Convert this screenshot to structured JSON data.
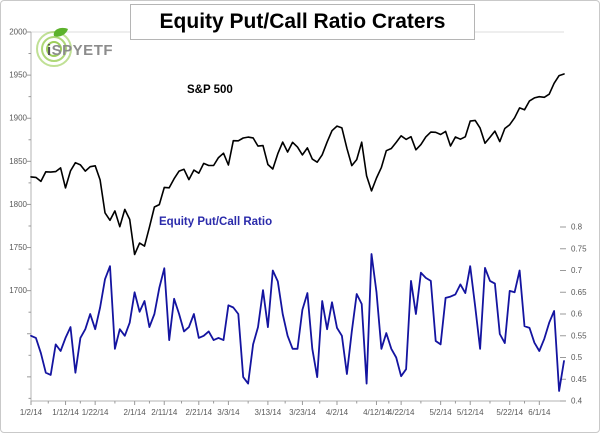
{
  "header": {
    "title": "Equity Put/Call Ratio Craters"
  },
  "logo": {
    "prefix": "i",
    "rest": "SPYETF"
  },
  "colors": {
    "frame_border": "#c9c9c9",
    "title_border": "#b5b5b5",
    "axis_line": "#b3b3b3",
    "plot_top_border": "#dcdcdc",
    "tick": "#9a9a9a",
    "axis_text": "#595959",
    "sp500_line": "#000000",
    "putcall_line": "#1414a0",
    "putcall_label": "#2b2bab",
    "logo_green": "#8cc63e",
    "logo_leaf": "#5cb22c",
    "logo_text_gray": "#8c8c8c",
    "logo_text_dark": "#555555"
  },
  "chart_data": {
    "type": "line",
    "title": "Equity Put/Call Ratio Craters",
    "x_axis": {
      "tick_labels": [
        "1/2/14",
        "1/12/14",
        "1/22/14",
        "2/1/14",
        "2/11/14",
        "2/21/14",
        "3/3/14",
        "3/13/14",
        "3/23/14",
        "4/2/14",
        "4/12/14",
        "4/22/14",
        "5/2/14",
        "5/12/14",
        "5/22/14",
        "6/1/14"
      ],
      "tick_point_indices": [
        0,
        7,
        13,
        21,
        27,
        34,
        40,
        48,
        55,
        62,
        70,
        75,
        83,
        89,
        97,
        103
      ],
      "num_points": 109,
      "note": "daily trading days, 1/2/14 through early June 2014"
    },
    "y_left": {
      "axis_for": "S&P 500",
      "min": 1572,
      "max": 2000,
      "tick_values": [
        2000,
        1950,
        1900,
        1850,
        1800,
        1750,
        1700
      ],
      "minor_step": 25,
      "minor_min": 1575
    },
    "y_right": {
      "axis_for": "Equity Put/Call Ratio",
      "min": 0.4,
      "max": 0.8,
      "tick_values": [
        0.8,
        0.75,
        0.7,
        0.65,
        0.6,
        0.55,
        0.5,
        0.45,
        0.4
      ]
    },
    "series": [
      {
        "name": "S&P 500",
        "axis": "left",
        "color": "#000000",
        "values": [
          1831.98,
          1831.37,
          1826.77,
          1837.88,
          1837.49,
          1838.13,
          1842.37,
          1819.2,
          1838.88,
          1848.38,
          1845.89,
          1838.7,
          1843.8,
          1844.86,
          1828.46,
          1790.29,
          1781.56,
          1792.5,
          1774.2,
          1794.19,
          1782.59,
          1741.89,
          1755.2,
          1751.64,
          1773.43,
          1797.02,
          1799.84,
          1819.75,
          1819.26,
          1829.83,
          1838.63,
          1840.76,
          1828.75,
          1839.78,
          1836.25,
          1847.61,
          1845.12,
          1845.16,
          1854.29,
          1859.45,
          1845.73,
          1873.91,
          1873.81,
          1877.03,
          1878.04,
          1877.17,
          1867.63,
          1868.2,
          1846.34,
          1841.13,
          1858.83,
          1872.25,
          1860.77,
          1872.01,
          1866.52,
          1857.44,
          1865.62,
          1852.56,
          1849.04,
          1857.62,
          1872.34,
          1885.52,
          1890.9,
          1888.77,
          1865.09,
          1845.04,
          1851.96,
          1872.18,
          1833.08,
          1815.69,
          1830.61,
          1842.98,
          1862.31,
          1864.85,
          1871.89,
          1879.55,
          1875.39,
          1878.61,
          1863.4,
          1869.43,
          1878.33,
          1883.95,
          1883.68,
          1881.14,
          1884.66,
          1867.72,
          1878.21,
          1875.63,
          1878.48,
          1896.65,
          1897.45,
          1888.53,
          1870.85,
          1877.86,
          1885.08,
          1872.83,
          1888.03,
          1892.49,
          1900.53,
          1911.91,
          1909.78,
          1920.03,
          1923.57,
          1924.97,
          1924.24,
          1927.88,
          1940.46,
          1949.44,
          1951.27
        ]
      },
      {
        "name": "Equity Put/Call Ratio",
        "axis": "right",
        "color": "#1414a0",
        "values": [
          0.55,
          0.545,
          0.51,
          0.465,
          0.46,
          0.53,
          0.515,
          0.545,
          0.57,
          0.465,
          0.545,
          0.565,
          0.6,
          0.565,
          0.615,
          0.68,
          0.71,
          0.52,
          0.565,
          0.55,
          0.58,
          0.65,
          0.605,
          0.63,
          0.57,
          0.6,
          0.66,
          0.705,
          0.54,
          0.635,
          0.6,
          0.56,
          0.57,
          0.6,
          0.545,
          0.55,
          0.56,
          0.54,
          0.545,
          0.54,
          0.62,
          0.615,
          0.6,
          0.455,
          0.44,
          0.53,
          0.57,
          0.655,
          0.57,
          0.7,
          0.675,
          0.6,
          0.55,
          0.52,
          0.52,
          0.61,
          0.648,
          0.52,
          0.455,
          0.63,
          0.565,
          0.627,
          0.568,
          0.55,
          0.462,
          0.56,
          0.646,
          0.623,
          0.44,
          0.738,
          0.65,
          0.52,
          0.556,
          0.52,
          0.5,
          0.457,
          0.473,
          0.676,
          0.6,
          0.695,
          0.683,
          0.676,
          0.538,
          0.53,
          0.637,
          0.64,
          0.645,
          0.668,
          0.648,
          0.71,
          0.617,
          0.52,
          0.706,
          0.676,
          0.67,
          0.554,
          0.533,
          0.653,
          0.65,
          0.7,
          0.572,
          0.568,
          0.534,
          0.515,
          0.543,
          0.58,
          0.607,
          0.423,
          0.492
        ]
      }
    ]
  }
}
